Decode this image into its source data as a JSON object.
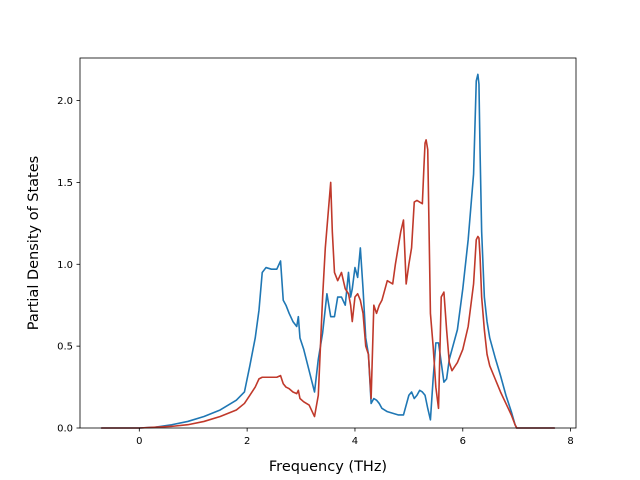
{
  "chart_data": {
    "type": "line",
    "title": "",
    "xlabel": "Frequency (THz)",
    "ylabel": "Partial Density of States",
    "xlim": [
      -1.1,
      8.1
    ],
    "ylim": [
      0,
      2.26
    ],
    "xticks": [
      0,
      2,
      4,
      6,
      8
    ],
    "yticks": [
      0.0,
      0.5,
      1.0,
      1.5,
      2.0
    ],
    "xtick_labels": [
      "0",
      "2",
      "4",
      "6",
      "8"
    ],
    "ytick_labels": [
      "0.0",
      "0.5",
      "1.0",
      "1.5",
      "2.0"
    ],
    "grid": false,
    "legend": "none",
    "series": [
      {
        "color": "#1f77b4",
        "x": [
          -0.7,
          0.0,
          0.3,
          0.6,
          0.9,
          1.2,
          1.5,
          1.8,
          1.95,
          2.05,
          2.15,
          2.22,
          2.28,
          2.35,
          2.45,
          2.55,
          2.62,
          2.67,
          2.72,
          2.78,
          2.85,
          2.92,
          2.95,
          2.98,
          3.05,
          3.15,
          3.25,
          3.32,
          3.4,
          3.48,
          3.55,
          3.62,
          3.68,
          3.75,
          3.82,
          3.88,
          3.92,
          3.95,
          4.0,
          4.05,
          4.1,
          4.15,
          4.2,
          4.25,
          4.3,
          4.35,
          4.4,
          4.45,
          4.5,
          4.6,
          4.7,
          4.8,
          4.9,
          5.0,
          5.05,
          5.1,
          5.15,
          5.2,
          5.25,
          5.3,
          5.35,
          5.4,
          5.45,
          5.5,
          5.55,
          5.6,
          5.65,
          5.7,
          5.75,
          5.8,
          5.9,
          6.0,
          6.1,
          6.2,
          6.25,
          6.28,
          6.3,
          6.32,
          6.35,
          6.4,
          6.45,
          6.5,
          6.6,
          6.7,
          6.8,
          6.9,
          6.97,
          7.0,
          7.3,
          7.7
        ],
        "values": [
          0.0,
          0.0,
          0.005,
          0.02,
          0.04,
          0.07,
          0.11,
          0.17,
          0.22,
          0.38,
          0.55,
          0.72,
          0.95,
          0.98,
          0.97,
          0.97,
          1.02,
          0.78,
          0.75,
          0.7,
          0.65,
          0.62,
          0.68,
          0.55,
          0.48,
          0.35,
          0.22,
          0.42,
          0.58,
          0.82,
          0.68,
          0.68,
          0.8,
          0.8,
          0.75,
          0.95,
          0.8,
          0.85,
          0.98,
          0.92,
          1.1,
          0.85,
          0.55,
          0.45,
          0.15,
          0.18,
          0.17,
          0.15,
          0.12,
          0.1,
          0.09,
          0.08,
          0.08,
          0.2,
          0.22,
          0.18,
          0.2,
          0.23,
          0.22,
          0.2,
          0.12,
          0.05,
          0.3,
          0.52,
          0.52,
          0.4,
          0.28,
          0.3,
          0.42,
          0.48,
          0.6,
          0.85,
          1.15,
          1.55,
          2.12,
          2.16,
          2.1,
          1.7,
          1.2,
          0.8,
          0.65,
          0.55,
          0.43,
          0.32,
          0.2,
          0.1,
          0.02,
          0.0,
          0.0,
          0.0
        ]
      },
      {
        "color": "#c0392b",
        "x": [
          -0.7,
          0.0,
          0.3,
          0.6,
          0.9,
          1.2,
          1.5,
          1.8,
          1.95,
          2.05,
          2.15,
          2.22,
          2.28,
          2.35,
          2.45,
          2.55,
          2.62,
          2.67,
          2.72,
          2.78,
          2.85,
          2.92,
          2.95,
          2.98,
          3.05,
          3.15,
          3.25,
          3.32,
          3.4,
          3.45,
          3.5,
          3.55,
          3.58,
          3.62,
          3.68,
          3.75,
          3.82,
          3.88,
          3.92,
          3.95,
          4.0,
          4.05,
          4.1,
          4.15,
          4.2,
          4.25,
          4.3,
          4.35,
          4.4,
          4.45,
          4.5,
          4.6,
          4.7,
          4.75,
          4.8,
          4.85,
          4.9,
          4.95,
          5.0,
          5.05,
          5.1,
          5.15,
          5.2,
          5.25,
          5.28,
          5.3,
          5.32,
          5.35,
          5.4,
          5.45,
          5.5,
          5.55,
          5.6,
          5.65,
          5.7,
          5.75,
          5.8,
          5.9,
          6.0,
          6.1,
          6.2,
          6.25,
          6.28,
          6.3,
          6.32,
          6.35,
          6.4,
          6.45,
          6.5,
          6.6,
          6.7,
          6.8,
          6.9,
          6.97,
          7.0,
          7.3,
          7.7
        ],
        "values": [
          0.0,
          0.0,
          0.005,
          0.01,
          0.02,
          0.04,
          0.07,
          0.11,
          0.15,
          0.2,
          0.25,
          0.3,
          0.31,
          0.31,
          0.31,
          0.31,
          0.32,
          0.27,
          0.25,
          0.24,
          0.22,
          0.21,
          0.23,
          0.18,
          0.16,
          0.14,
          0.07,
          0.2,
          0.8,
          1.1,
          1.3,
          1.5,
          1.2,
          0.95,
          0.9,
          0.95,
          0.85,
          0.82,
          0.75,
          0.65,
          0.8,
          0.82,
          0.78,
          0.7,
          0.5,
          0.45,
          0.18,
          0.75,
          0.7,
          0.75,
          0.78,
          0.9,
          0.88,
          1.0,
          1.1,
          1.2,
          1.27,
          0.88,
          1.0,
          1.1,
          1.38,
          1.39,
          1.38,
          1.37,
          1.6,
          1.74,
          1.76,
          1.7,
          0.7,
          0.5,
          0.25,
          0.12,
          0.8,
          0.83,
          0.6,
          0.4,
          0.35,
          0.4,
          0.48,
          0.62,
          0.88,
          1.15,
          1.17,
          1.16,
          1.05,
          0.8,
          0.6,
          0.45,
          0.38,
          0.3,
          0.22,
          0.15,
          0.08,
          0.02,
          0.0,
          0.0,
          0.0
        ]
      }
    ]
  }
}
